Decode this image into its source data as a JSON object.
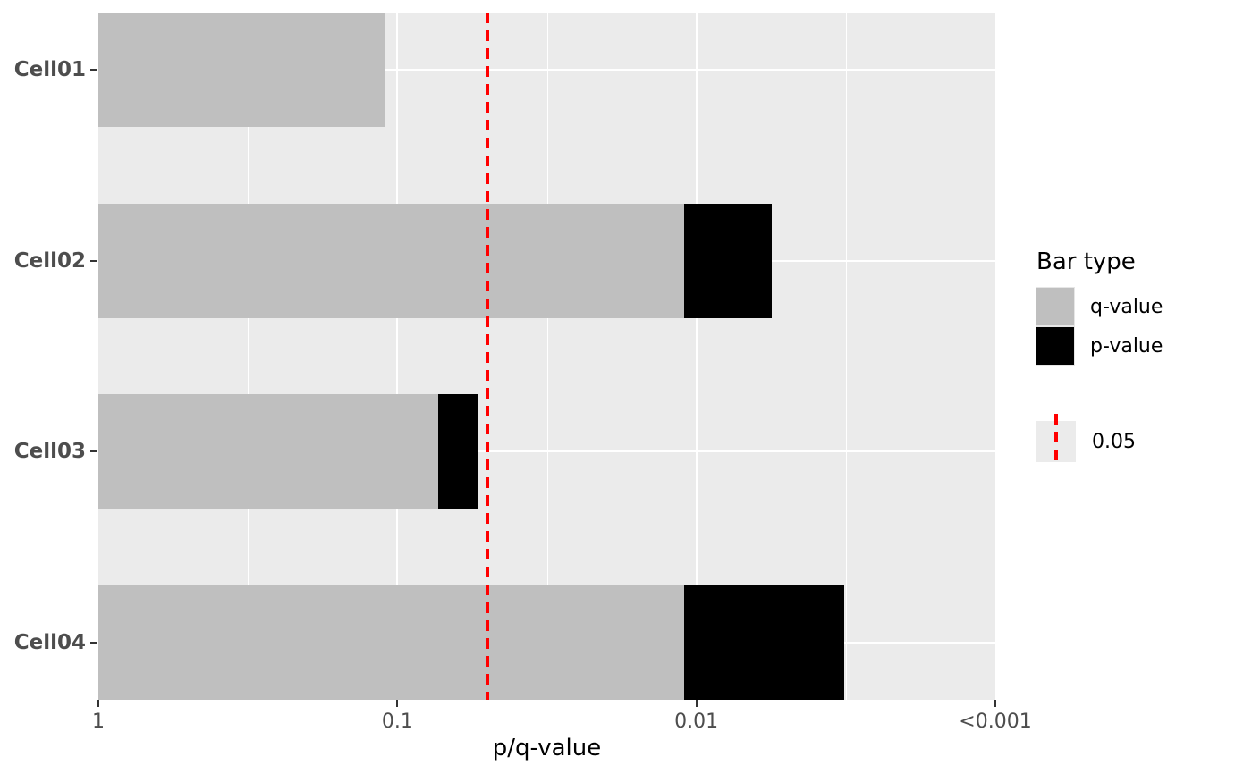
{
  "chart_data": {
    "type": "bar",
    "orientation": "horizontal",
    "title": "",
    "xlabel": "p/q-value",
    "ylabel": "",
    "x_scale": "log10-reversed",
    "x_range": [
      1,
      0.001
    ],
    "grid": true,
    "categories": [
      "Cell01",
      "Cell02",
      "Cell03",
      "Cell04"
    ],
    "series": [
      {
        "name": "p-value",
        "color": "#000000",
        "values": [
          0.11,
          0.0056,
          0.054,
          0.0032
        ]
      },
      {
        "name": "q-value",
        "color": "#bfbfbf",
        "values": [
          0.11,
          0.011,
          0.073,
          0.011
        ]
      }
    ],
    "x_ticks": [
      {
        "value": 1,
        "label": "1"
      },
      {
        "value": 0.1,
        "label": "0.1"
      },
      {
        "value": 0.01,
        "label": "0.01"
      },
      {
        "value": 0.001,
        "label": "<0.001"
      }
    ],
    "threshold": {
      "value": 0.05,
      "label": "0.05",
      "color": "#ff0000",
      "style": "dashed"
    },
    "legend": {
      "position": "right",
      "title": "Bar type",
      "q_label": "q-value",
      "p_label": "p-value",
      "threshold_label": "0.05"
    },
    "colors": {
      "panel_background": "#ebebeb",
      "gridline": "#ffffff",
      "axis_text": "#4d4d4d",
      "q_bar": "#bfbfbf",
      "p_bar": "#000000",
      "threshold_line": "#ff0000"
    }
  }
}
